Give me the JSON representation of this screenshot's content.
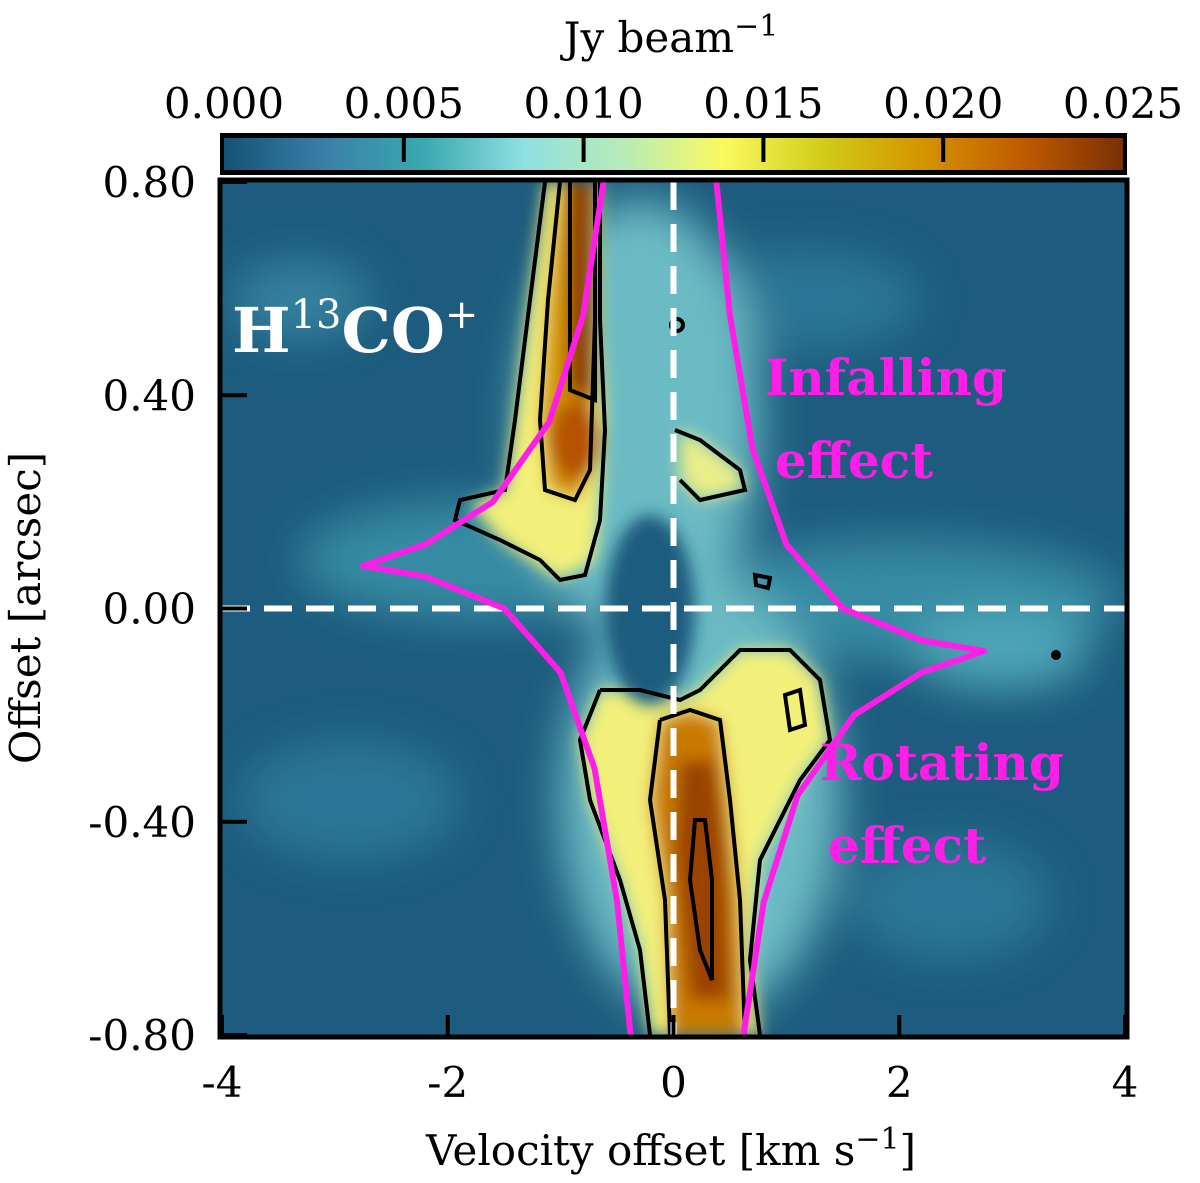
{
  "chart_data": {
    "type": "heatmap",
    "title": "",
    "xlabel": "Velocity offset [km s",
    "xlabel_sup": "−1",
    "xlabel_end": "]",
    "ylabel": "Offset [arcsec]",
    "xlim": [
      -4,
      4
    ],
    "ylim": [
      -0.8,
      0.8
    ],
    "xticks": [
      -4,
      -2,
      0,
      2,
      4
    ],
    "xtick_labels": [
      "-4",
      "-2",
      "0",
      "2",
      "4"
    ],
    "yticks": [
      0.8,
      0.4,
      0.0,
      -0.4,
      -0.8
    ],
    "ytick_labels": [
      "0.80",
      "0.40",
      "0.00",
      "-0.40",
      "-0.80"
    ],
    "colorbar": {
      "label": "Jy beam",
      "label_sup": "−1",
      "range": [
        0,
        0.025
      ],
      "ticks": [
        0,
        0.005,
        0.01,
        0.015,
        0.02,
        0.025
      ],
      "tick_labels": [
        "0.000",
        "0.005",
        "0.010",
        "0.015",
        "0.020",
        "0.025"
      ],
      "colormap": [
        "#155275",
        "#3a7fa8",
        "#3aa8b0",
        "#8fe0e0",
        "#b8ebb8",
        "#fafa60",
        "#d0cc18",
        "#d49400",
        "#c05a00",
        "#7a3005"
      ]
    },
    "emission_peaks": [
      {
        "v": -0.8,
        "offset": 0.55,
        "value": 0.025
      },
      {
        "v": -0.75,
        "offset": 0.3,
        "value": 0.022
      },
      {
        "v": 0.3,
        "offset": -0.4,
        "value": 0.022
      },
      {
        "v": 0.3,
        "offset": -0.65,
        "value": 0.024
      }
    ],
    "reference_lines": [
      {
        "axis": "x",
        "value": 0
      },
      {
        "axis": "y",
        "value": 0
      }
    ],
    "model_curves": [
      {
        "name": "left",
        "points": [
          [
            -0.62,
            0.8
          ],
          [
            -0.8,
            0.55
          ],
          [
            -1.1,
            0.35
          ],
          [
            -1.6,
            0.2
          ],
          [
            -2.2,
            0.12
          ],
          [
            -2.75,
            0.08
          ],
          [
            -2.2,
            0.06
          ],
          [
            -1.5,
            0.0
          ],
          [
            -1.0,
            -0.12
          ],
          [
            -0.7,
            -0.3
          ],
          [
            -0.5,
            -0.55
          ],
          [
            -0.38,
            -0.8
          ]
        ]
      },
      {
        "name": "right",
        "points": [
          [
            0.38,
            0.8
          ],
          [
            0.5,
            0.55
          ],
          [
            0.7,
            0.3
          ],
          [
            1.0,
            0.12
          ],
          [
            1.5,
            0.0
          ],
          [
            2.2,
            -0.06
          ],
          [
            2.75,
            -0.08
          ],
          [
            2.2,
            -0.12
          ],
          [
            1.6,
            -0.2
          ],
          [
            1.1,
            -0.35
          ],
          [
            0.8,
            -0.55
          ],
          [
            0.62,
            -0.8
          ]
        ]
      }
    ],
    "species_label": "H",
    "species_sup1": "13",
    "species_mid": "CO",
    "species_sup2": "+",
    "annotations": [
      {
        "text": "Infalling"
      },
      {
        "text": "effect"
      },
      {
        "text": "Rotating"
      },
      {
        "text": "effect"
      }
    ]
  }
}
